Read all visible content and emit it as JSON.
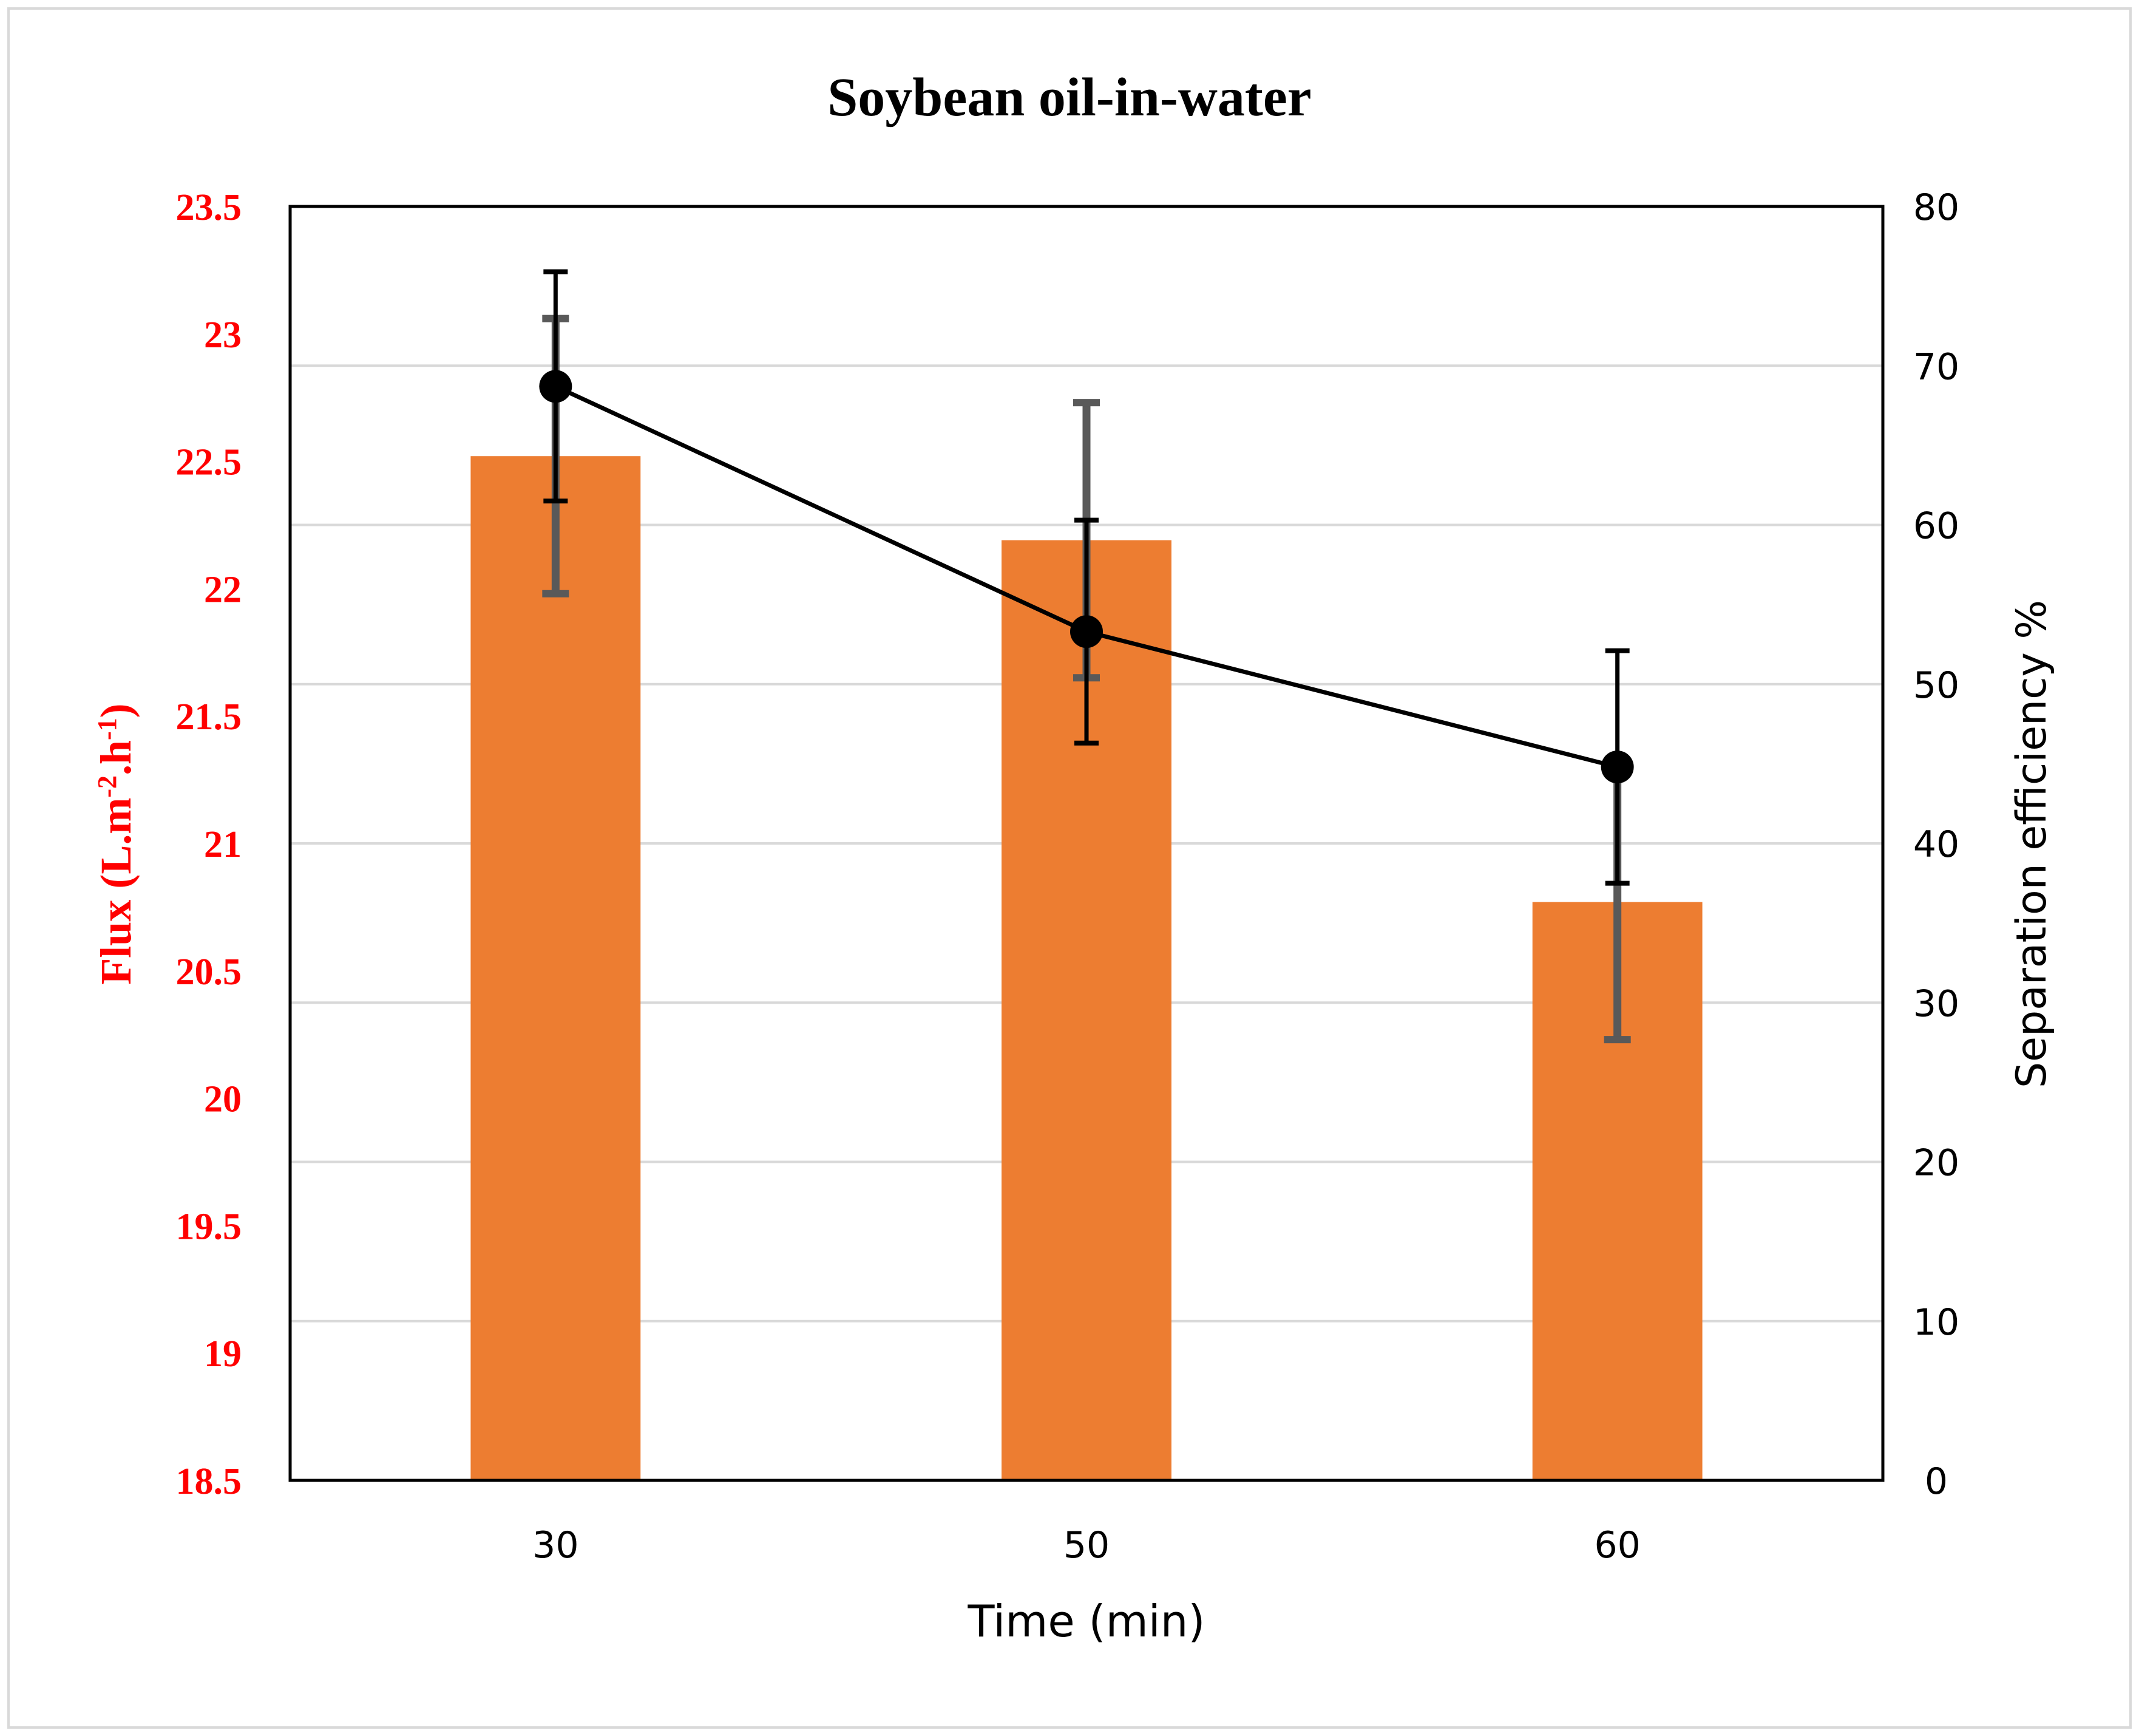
{
  "chart_data": {
    "type": "bar+line",
    "title": "Soybean oil-in-water",
    "xlabel": "Time (min)",
    "categories": [
      "30",
      "50",
      "60"
    ],
    "y_left": {
      "label": "Flux (L.m-2.h-1)",
      "label_main": "Flux (L.m",
      "label_sup1": "-2",
      "label_mid": ".h",
      "label_sup2": "-1",
      "label_end": ")",
      "ylim": [
        18.5,
        23.5
      ],
      "ticks": [
        "18.5",
        "19",
        "19.5",
        "20",
        "20.5",
        "21",
        "21.5",
        "22",
        "22.5",
        "23",
        "23.5"
      ]
    },
    "y_right": {
      "label": "Separation efficiency %",
      "ylim": [
        0,
        80
      ],
      "ticks": [
        "0",
        "10",
        "20",
        "30",
        "40",
        "50",
        "60",
        "70",
        "80"
      ]
    },
    "series": [
      {
        "name": "Flux",
        "kind": "bar",
        "axis": "left",
        "values": [
          22.52,
          22.19,
          20.77
        ],
        "error": [
          0.54,
          0.54,
          0.54
        ]
      },
      {
        "name": "Separation efficiency",
        "kind": "line",
        "axis": "right",
        "values": [
          68.7,
          53.3,
          44.8
        ],
        "error": [
          7.2,
          7.0,
          7.3
        ]
      }
    ],
    "grid": true,
    "legend": "none"
  },
  "colors": {
    "bar": "#ed7d31",
    "line": "#000000",
    "bar_error": "#595959",
    "line_error": "#000000",
    "grid": "#d9d9d9",
    "left_axis_text": "#ff0000",
    "frame": "#d9d9d9"
  }
}
